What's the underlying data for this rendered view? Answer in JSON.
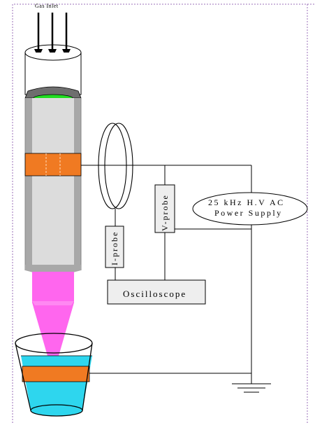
{
  "labels": {
    "gas_inlet": "Gas Inlet",
    "i_probe": "I-probe",
    "v_probe": "V-probe",
    "oscilloscope": "Oscilloscope",
    "power_supply_line1": "25 kHz H.V AC",
    "power_supply_line2": "Power Supply"
  },
  "colors": {
    "tube_gray": "#a8a8a8",
    "tube_inner": "#dcdcdc",
    "tube_cap": "#6e6e6e",
    "gas_opening": "#22dd22",
    "electrode_band": "#f07a22",
    "plasma_jet": "#ff66ee",
    "liquid": "#2ed6ee",
    "probe_box": "#eeeeee",
    "wire": "#000000",
    "border_dotted": "#9b6fb8"
  }
}
